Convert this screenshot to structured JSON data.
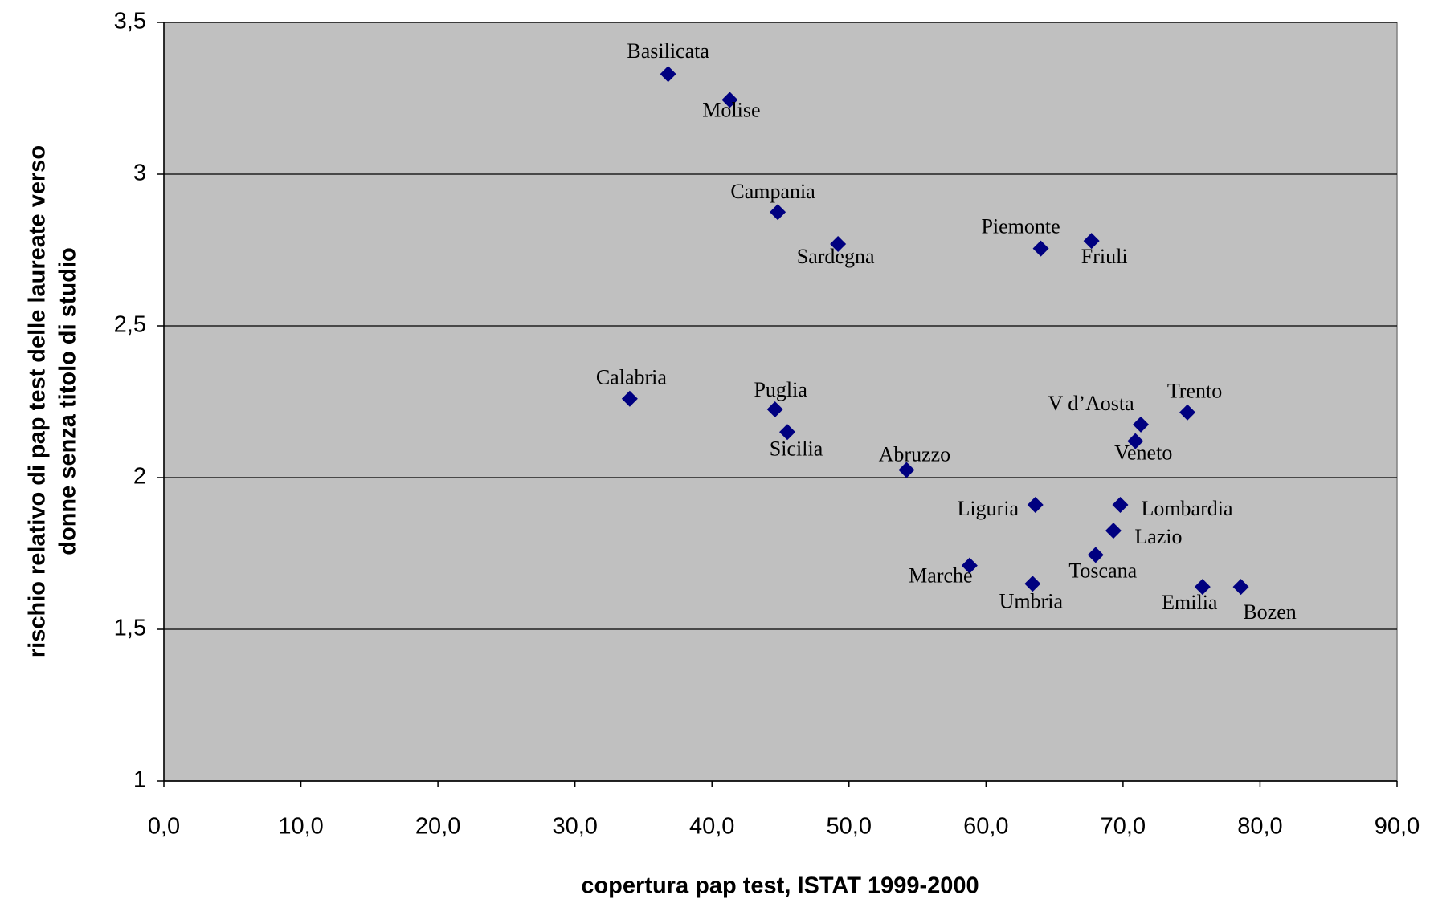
{
  "chart_data": {
    "type": "scatter",
    "xlabel": "copertura pap test, ISTAT 1999-2000",
    "ylabel": [
      "rischio relativo di pap test delle laureate verso",
      "donne senza titolo di studio"
    ],
    "point_labels": [
      "Basilicata",
      "Molise",
      "Campania",
      "Sardegna",
      "Piemonte",
      "Friuli",
      "Calabria",
      "Puglia",
      "Sicilia",
      "Abruzzo",
      "Trento",
      "V d’Aosta",
      "Veneto",
      "Liguria",
      "Lombardia",
      "Lazio",
      "Toscana",
      "Marche",
      "Umbria",
      "Emilia",
      "Bozen"
    ],
    "x": [
      36.8,
      41.3,
      44.8,
      49.2,
      64.0,
      67.7,
      34.0,
      44.6,
      45.5,
      54.2,
      74.7,
      71.3,
      70.9,
      63.6,
      69.8,
      69.3,
      68.0,
      58.8,
      63.4,
      75.8,
      78.6
    ],
    "values": [
      3.33,
      3.245,
      2.875,
      2.77,
      2.755,
      2.78,
      2.26,
      2.225,
      2.15,
      2.025,
      2.215,
      2.175,
      2.12,
      1.91,
      1.91,
      1.825,
      1.745,
      1.71,
      1.65,
      1.64,
      1.64
    ],
    "color": "#000080",
    "xlim": [
      0,
      90
    ],
    "xticks": [
      {
        "value": 0,
        "label": "0,0"
      },
      {
        "value": 10,
        "label": "10,0"
      },
      {
        "value": 20,
        "label": "20,0"
      },
      {
        "value": 30,
        "label": "30,0"
      },
      {
        "value": 40,
        "label": "40,0"
      },
      {
        "value": 50,
        "label": "50,0"
      },
      {
        "value": 60,
        "label": "60,0"
      },
      {
        "value": 70,
        "label": "70,0"
      },
      {
        "value": 80,
        "label": "80,0"
      },
      {
        "value": 90,
        "label": "90,0"
      }
    ],
    "ylim": [
      1,
      3.5
    ],
    "yticks": [
      1,
      {
        "value": 1.5,
        "label": "1,5"
      },
      2,
      {
        "value": 2.5,
        "label": "2,5"
      },
      3,
      {
        "value": 3.5,
        "label": "3,5"
      }
    ],
    "grid": true
  }
}
